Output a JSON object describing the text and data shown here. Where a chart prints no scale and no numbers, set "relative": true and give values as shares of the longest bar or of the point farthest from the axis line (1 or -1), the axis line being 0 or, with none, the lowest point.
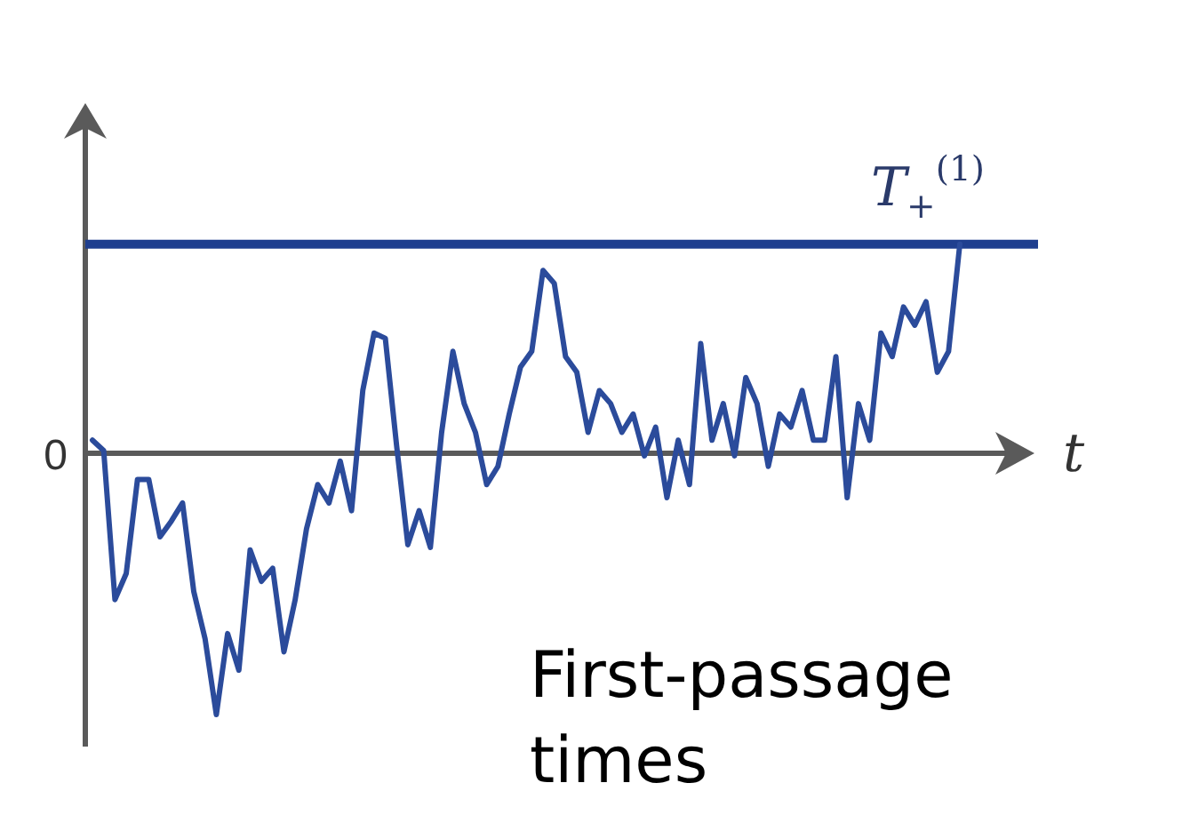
{
  "chart_data": {
    "type": "line",
    "relative": true,
    "xlabel": "t",
    "categories": [
      null,
      null,
      null,
      null,
      null,
      null,
      null,
      null,
      null,
      null,
      null,
      null,
      null,
      null,
      null,
      null,
      null,
      null,
      null,
      null,
      null,
      null,
      null,
      null,
      null,
      null,
      null,
      null,
      null,
      null,
      null,
      null,
      null,
      null,
      null,
      null,
      null,
      null,
      null,
      null,
      null,
      null,
      null,
      null,
      null,
      null,
      null,
      null,
      null,
      null,
      null,
      null,
      null,
      null,
      null,
      null,
      null,
      null,
      null,
      null,
      null,
      null,
      null,
      null,
      null,
      null,
      null,
      null,
      null,
      null,
      null,
      null,
      null,
      null,
      null,
      null,
      null,
      null
    ],
    "series": [
      {
        "color": "#2b4b9b",
        "values": [
          0.05,
          0.01,
          -0.56,
          -0.46,
          -0.1,
          -0.1,
          -0.32,
          -0.26,
          -0.19,
          -0.53,
          -0.71,
          -1,
          -0.69,
          -0.83,
          -0.37,
          -0.49,
          -0.44,
          -0.76,
          -0.56,
          -0.29,
          -0.12,
          -0.19,
          -0.03,
          -0.22,
          0.24,
          0.46,
          0.44,
          0.03,
          -0.35,
          -0.22,
          -0.36,
          0.08,
          0.39,
          0.19,
          0.08,
          -0.12,
          -0.05,
          0.15,
          0.33,
          0.39,
          0.7,
          0.65,
          0.37,
          0.31,
          0.08,
          0.24,
          0.19,
          0.08,
          0.15,
          -0.01,
          0.1,
          -0.17,
          0.05,
          -0.12,
          0.42,
          0.05,
          0.19,
          -0.01,
          0.29,
          0.19,
          -0.05,
          0.15,
          0.1,
          0.24,
          0.05,
          0.05,
          0.37,
          -0.17,
          0.19,
          0.05,
          0.46,
          0.37,
          0.56,
          0.49,
          0.58,
          0.31,
          0.39,
          0.8
        ]
      }
    ],
    "ref_lines": [
      {
        "axis": "y",
        "value": 0.8,
        "label": "T$_{+}$$^{(1)}$",
        "color": "#1f3f8f"
      }
    ],
    "annotations": [
      "0",
      "First-passage times"
    ],
    "line_style": "solid"
  }
}
